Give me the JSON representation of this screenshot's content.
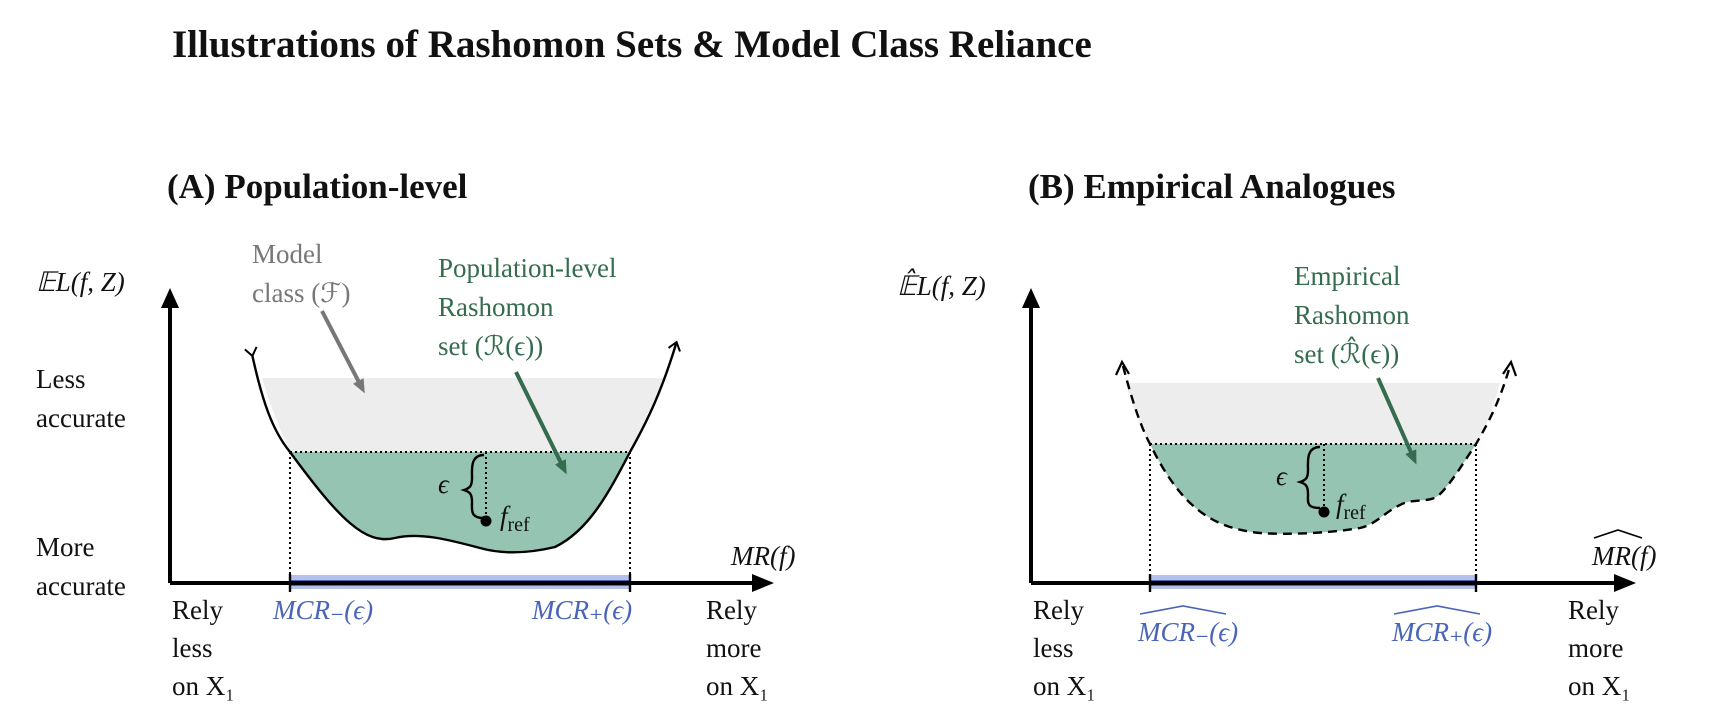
{
  "title": "Illustrations of Rashomon Sets & Model Class Reliance",
  "colors": {
    "rashomon_fill": "#96c4b2",
    "rashomon_text": "#356b4f",
    "model_class_fill": "#ededed",
    "model_class_text": "#777777",
    "mcr_interval": "#4a64b8",
    "mcr_interval_light": "#b5c1ea"
  },
  "panel_a": {
    "title": "(A) Population-level",
    "y_axis_label": "𝔼L(f, Z)",
    "y_top_label": [
      "Less",
      "accurate"
    ],
    "y_bottom_label": [
      "More",
      "accurate"
    ],
    "x_axis_label": "MR(f)",
    "x_left_label": [
      "Rely",
      "less",
      "on X₁"
    ],
    "x_right_label": [
      "Rely",
      "more",
      "on X₁"
    ],
    "model_class_label": [
      "Model",
      "class (ℱ)"
    ],
    "rashomon_label": [
      "Population-level",
      "Rashomon",
      "set (ℛ(ϵ))"
    ],
    "epsilon": "ϵ",
    "f_ref": "f",
    "f_ref_sub": "ref",
    "mcr_minus": "MCR₋(ϵ)",
    "mcr_plus": "MCR₊(ϵ)"
  },
  "panel_b": {
    "title": "(B) Empirical Analogues",
    "y_axis_label": "𝔼̂L(f, Z)",
    "x_axis_label": "MR(f)",
    "x_left_label": [
      "Rely",
      "less",
      "on X₁"
    ],
    "x_right_label": [
      "Rely",
      "more",
      "on X₁"
    ],
    "rashomon_label": [
      "Empirical",
      "Rashomon",
      "set (ℛ̂(ϵ))"
    ],
    "epsilon": "ϵ",
    "f_ref": "f",
    "f_ref_sub": "ref",
    "mcr_minus": "MCR₋(ϵ)",
    "mcr_plus": "MCR₊(ϵ)"
  }
}
